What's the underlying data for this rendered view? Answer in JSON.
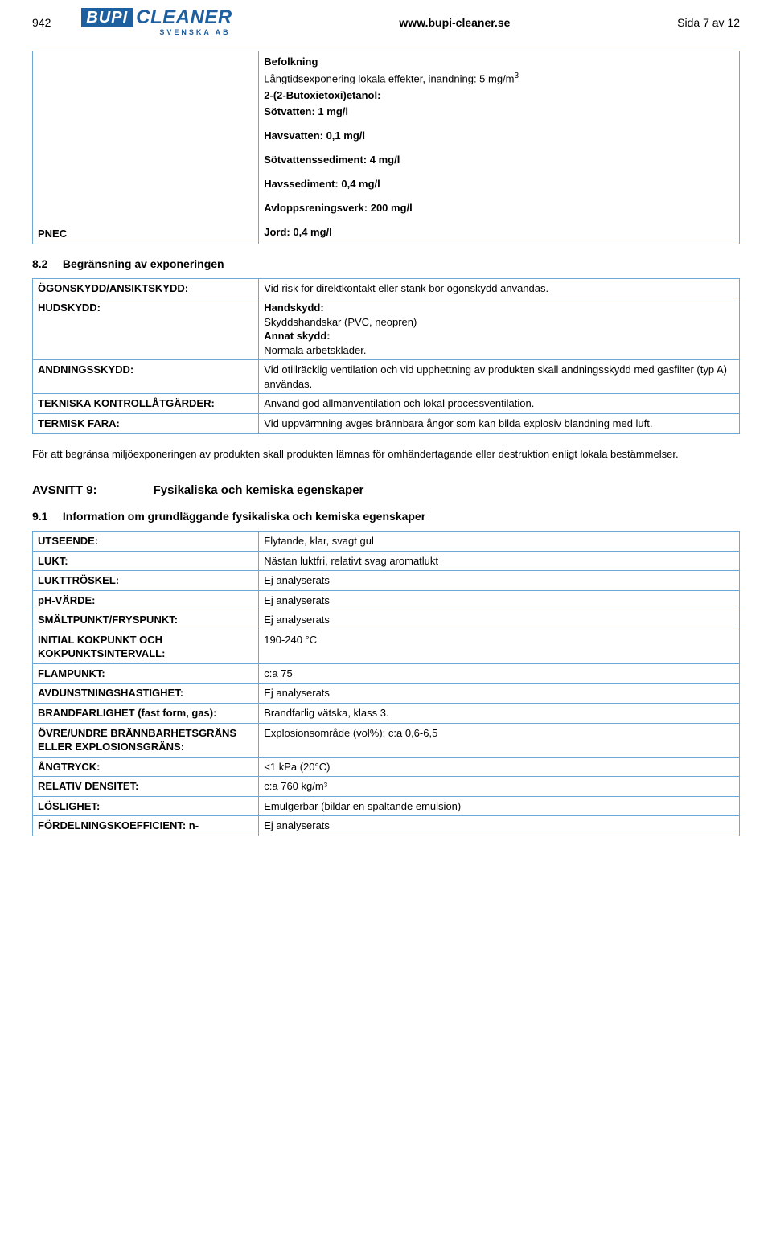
{
  "header": {
    "page_id": "942",
    "logo_bupi": "BUPI",
    "logo_cleaner": "CLEANER",
    "logo_sub": "SVENSKA AB",
    "url": "www.bupi-cleaner.se",
    "page_count": "Sida 7 av 12"
  },
  "pnec": {
    "label": "PNEC",
    "befolkning": "Befolkning",
    "langtid": "Långtidsexponering lokala effekter, inandning: 5 mg/m",
    "langtid_sup": "3",
    "compound": "2-(2-Butoxietoxi)etanol:",
    "sotvatten": "Sötvatten: 1 mg/l",
    "havsvatten": "Havsvatten: 0,1 mg/l",
    "sotsediment": "Sötvattenssediment: 4 mg/l",
    "havssediment": "Havssediment: 0,4 mg/l",
    "avlopp": "Avloppsreningsverk: 200 mg/l",
    "jord": "Jord: 0,4 mg/l"
  },
  "sec82": {
    "num": "8.2",
    "title": "Begränsning av exponeringen"
  },
  "tab2": {
    "r1_label": "ÖGONSKYDD/ANSIKTSKYDD:",
    "r1_val": "Vid risk för direktkontakt eller stänk bör ögonskydd användas.",
    "r2_label": "HUDSKYDD:",
    "r2_line1": "Handskydd:",
    "r2_line2": "Skyddshandskar (PVC, neopren)",
    "r2_line3": "Annat skydd:",
    "r2_line4": "Normala arbetskläder.",
    "r3_label": "ANDNINGSSKYDD:",
    "r3_val": "Vid otillräcklig ventilation och vid upphettning av produkten skall andningsskydd med gasfilter (typ A) användas.",
    "r4_label": "TEKNISKA KONTROLLÅTGÄRDER:",
    "r4_val": "Använd god allmänventilation och lokal processventilation.",
    "r5_label": "TERMISK FARA:",
    "r5_val": "Vid uppvärmning avges brännbara ångor som kan bilda explosiv blandning med luft."
  },
  "para2": "För att begränsa miljöexponeringen av produkten skall produkten lämnas för omhändertagande eller destruktion enligt lokala bestämmelser.",
  "avsnitt9": {
    "label": "AVSNITT 9:",
    "title": "Fysikaliska och kemiska egenskaper"
  },
  "sec91": {
    "num": "9.1",
    "title": "Information om grundläggande fysikaliska och kemiska egenskaper"
  },
  "tab3": {
    "rows": [
      {
        "label": "UTSEENDE:",
        "val": "Flytande, klar, svagt gul"
      },
      {
        "label": "LUKT:",
        "val": "Nästan luktfri, relativt svag aromatlukt"
      },
      {
        "label": "LUKTTRÖSKEL:",
        "val": "Ej analyserats"
      },
      {
        "label": "pH-VÄRDE:",
        "val": "Ej analyserats"
      },
      {
        "label": "SMÄLTPUNKT/FRYSPUNKT:",
        "val": "Ej analyserats"
      },
      {
        "label": "INITIAL KOKPUNKT OCH KOKPUNKTSINTERVALL:",
        "val": "190-240 °C"
      },
      {
        "label": "FLAMPUNKT:",
        "val": "c:a 75"
      },
      {
        "label": "AVDUNSTNINGSHASTIGHET:",
        "val": "Ej analyserats"
      },
      {
        "label": "BRANDFARLIGHET (fast form, gas):",
        "val": "Brandfarlig vätska, klass 3."
      },
      {
        "label": "ÖVRE/UNDRE BRÄNNBARHETSGRÄNS ELLER EXPLOSIONSGRÄNS:",
        "val": "Explosionsområde (vol%): c:a 0,6-6,5"
      },
      {
        "label": "ÅNGTRYCK:",
        "val": "<1 kPa (20°C)"
      },
      {
        "label": "RELATIV DENSITET:",
        "val": "c:a 760 kg/m³"
      },
      {
        "label": "LÖSLIGHET:",
        "val": "Emulgerbar (bildar en spaltande emulsion)"
      },
      {
        "label": "FÖRDELNINGSKOEFFICIENT: n-",
        "val": "Ej analyserats"
      }
    ]
  }
}
